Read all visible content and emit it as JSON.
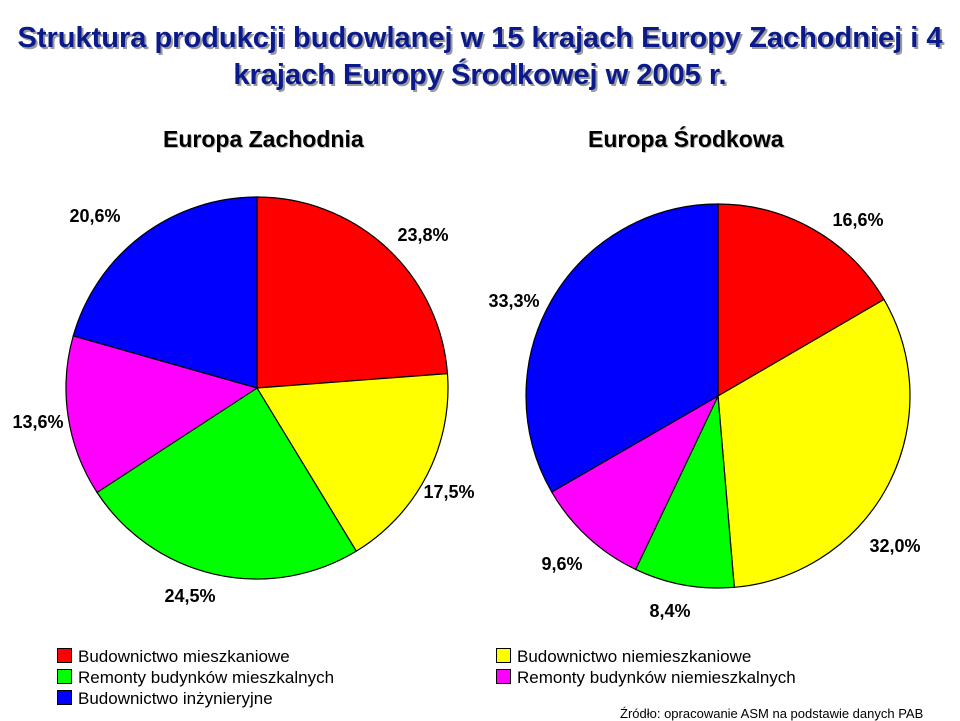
{
  "title": {
    "line1": "Struktura produkcji budowlanej w 15 krajach Europy Zachodniej i 4",
    "line2": "krajach Europy Środkowej w 2005 r."
  },
  "colors": {
    "Budownictwo mieszkaniowe": "#ff0000",
    "Budownictwo niemieszkaniowe": "#ffff00",
    "Remonty budynków mieszkalnych": "#00ff00",
    "Remonty budynków niemieszkalnych": "#ff00ff",
    "Budownictwo inżynieryjne": "#0000ff"
  },
  "chart_data": [
    {
      "type": "pie",
      "title": "Europa Zachodnia",
      "categories": [
        "Budownictwo mieszkaniowe",
        "Budownictwo niemieszkaniowe",
        "Remonty budynków mieszkalnych",
        "Remonty budynków niemieszkalnych",
        "Budownictwo inżynieryjne"
      ],
      "values": [
        23.8,
        17.5,
        24.5,
        13.6,
        20.6
      ],
      "labels": [
        "23,8%",
        "17,5%",
        "24,5%",
        "13,6%",
        "20,6%"
      ]
    },
    {
      "type": "pie",
      "title": "Europa Środkowa",
      "categories": [
        "Budownictwo mieszkaniowe",
        "Budownictwo niemieszkaniowe",
        "Remonty budynków mieszkalnych",
        "Remonty budynków niemieszkalnych",
        "Budownictwo inżynieryjne"
      ],
      "values": [
        16.6,
        32.0,
        8.4,
        9.6,
        33.3
      ],
      "labels": [
        "16,6%",
        "32,0%",
        "8,4%",
        "9,6%",
        "33,3%"
      ]
    }
  ],
  "legend": {
    "items": [
      "Budownictwo mieszkaniowe",
      "Budownictwo niemieszkaniowe",
      "Remonty budynków mieszkalnych",
      "Remonty budynków niemieszkalnych",
      "Budownictwo inżynieryjne"
    ],
    "placement": "bottom"
  },
  "source": "Źródło: opracowanie ASM na podstawie danych PAB"
}
